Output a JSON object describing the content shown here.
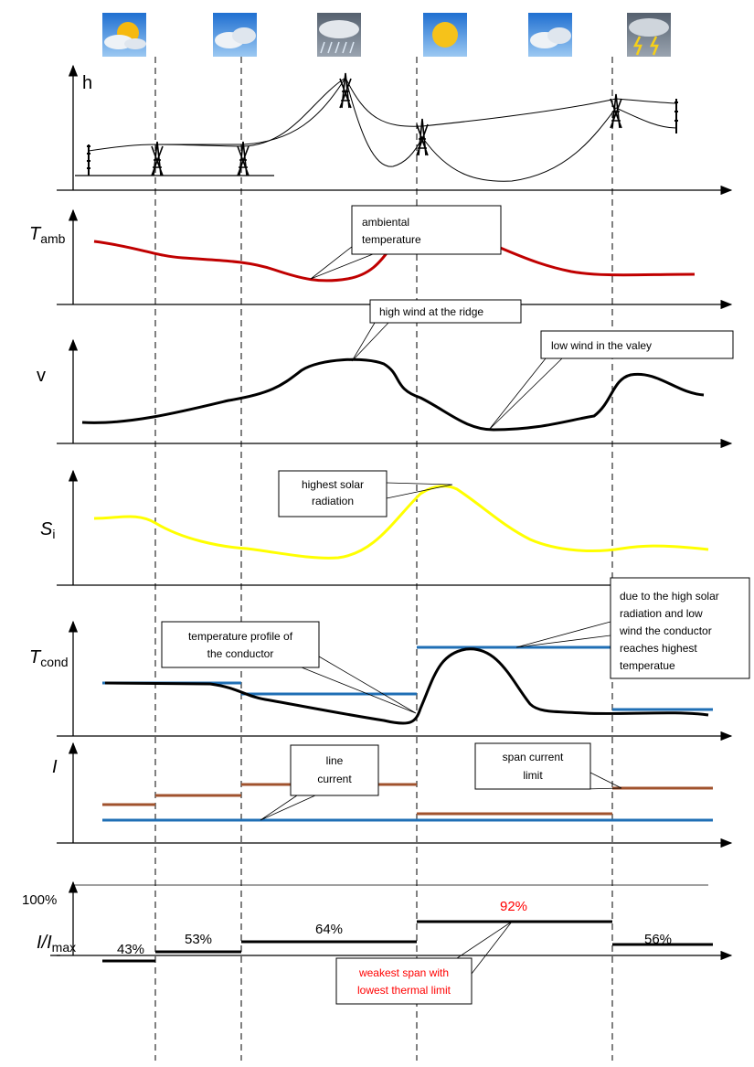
{
  "panels": [
    {
      "label": "h"
    },
    {
      "label": "T",
      "subscript": "amb"
    },
    {
      "label": "v"
    },
    {
      "label": "S",
      "subscript": "i"
    },
    {
      "label": "T",
      "subscript": "cond"
    },
    {
      "label": "I"
    },
    {
      "label": "I/I",
      "subscript": "max"
    }
  ],
  "reference_label": "100%",
  "ratios": [
    "43%",
    "53%",
    "64%",
    "92%",
    "56%"
  ],
  "callouts": [
    {
      "lines": [
        "ambiental",
        "temperature"
      ]
    },
    {
      "lines": [
        "high wind at the ridge"
      ]
    },
    {
      "lines": [
        "low wind in the valey"
      ]
    },
    {
      "lines": [
        "highest solar",
        "radiation"
      ]
    },
    {
      "lines": [
        "temperature profile of",
        "the conductor"
      ]
    },
    {
      "lines": [
        "due to the high solar",
        "radiation and low",
        "wind the conductor",
        "reaches highest",
        "temperatue"
      ]
    },
    {
      "lines": [
        "line",
        "current"
      ]
    },
    {
      "lines": [
        "span current",
        "limit"
      ]
    },
    {
      "lines": [
        "weakest span with",
        "lowest thermal limit"
      ]
    }
  ]
}
